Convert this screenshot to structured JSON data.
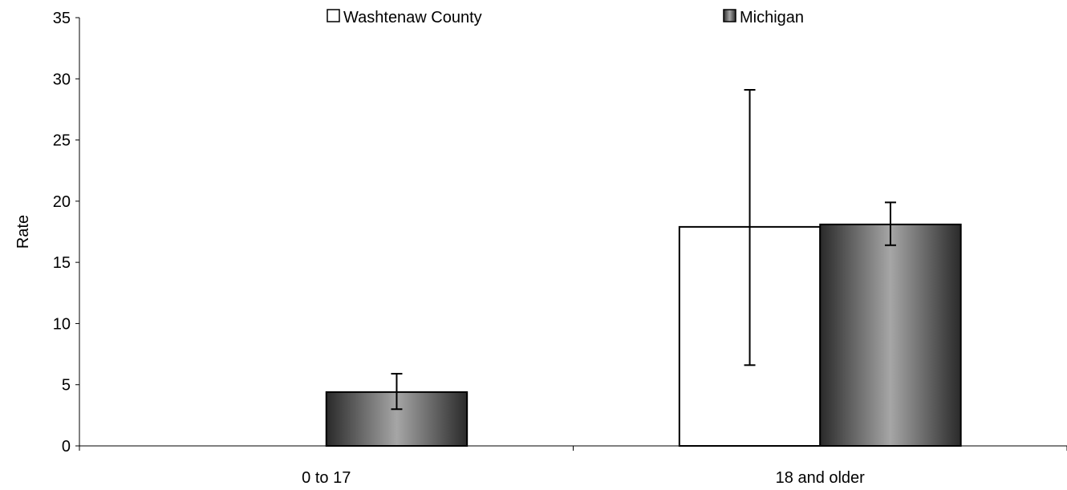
{
  "chart_data": {
    "type": "bar",
    "title": "",
    "xlabel": "",
    "ylabel": "Rate",
    "ylim": [
      0,
      35
    ],
    "yticks": [
      0,
      5,
      10,
      15,
      20,
      25,
      30,
      35
    ],
    "categories": [
      "0 to 17",
      "18 and older"
    ],
    "series": [
      {
        "name": "Washtenaw County",
        "values": [
          0,
          17.9
        ],
        "error_low": [
          null,
          6.6
        ],
        "error_high": [
          null,
          29.1
        ],
        "fill": "#ffffff"
      },
      {
        "name": "Michigan",
        "values": [
          4.4,
          18.1
        ],
        "error_low": [
          3.0,
          16.4
        ],
        "error_high": [
          5.9,
          19.9
        ],
        "fill": "gradient-gray"
      }
    ],
    "legend": {
      "position": "top",
      "entries": [
        "Washtenaw County",
        "Michigan"
      ]
    },
    "grid": false
  }
}
